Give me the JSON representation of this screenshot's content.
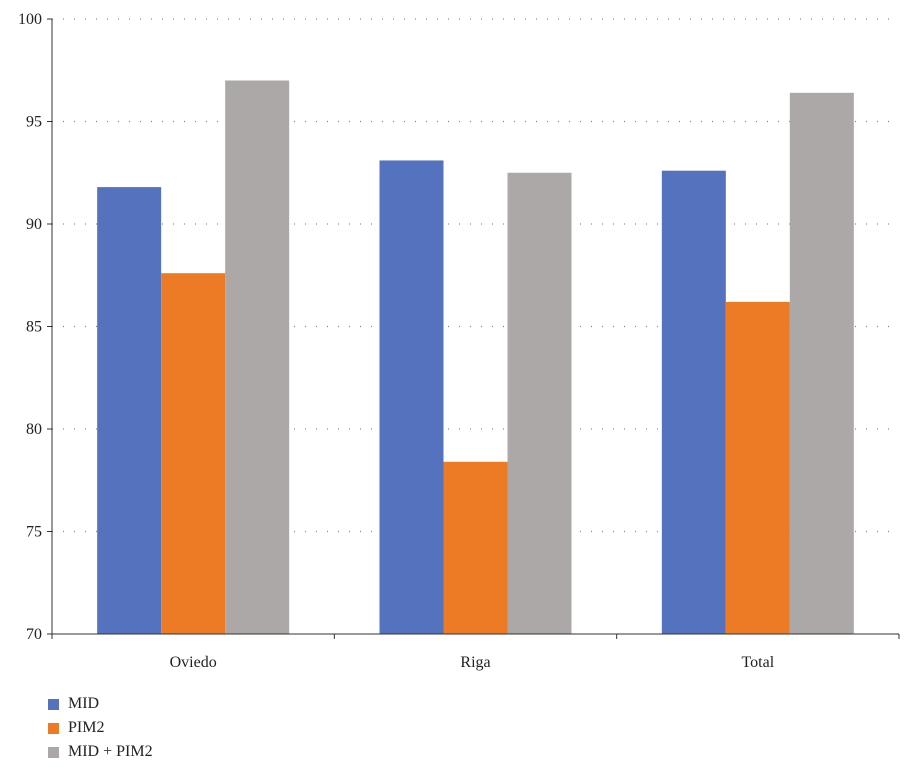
{
  "chart_data": {
    "type": "bar",
    "categories": [
      "Oviedo",
      "Riga",
      "Total"
    ],
    "series": [
      {
        "name": "MID",
        "color": "#5472BD",
        "values": [
          91.8,
          93.1,
          92.6
        ]
      },
      {
        "name": "PIM2",
        "color": "#ED7B25",
        "values": [
          87.6,
          78.4,
          86.2
        ]
      },
      {
        "name": "MID + PIM2",
        "color": "#ABA8A7",
        "values": [
          97.0,
          92.5,
          96.4
        ]
      }
    ],
    "ylim": [
      70,
      100
    ],
    "yticks": [
      70,
      75,
      80,
      85,
      90,
      95,
      100
    ],
    "grid": "horizontal-dotted",
    "legend_position": "bottom-left"
  }
}
